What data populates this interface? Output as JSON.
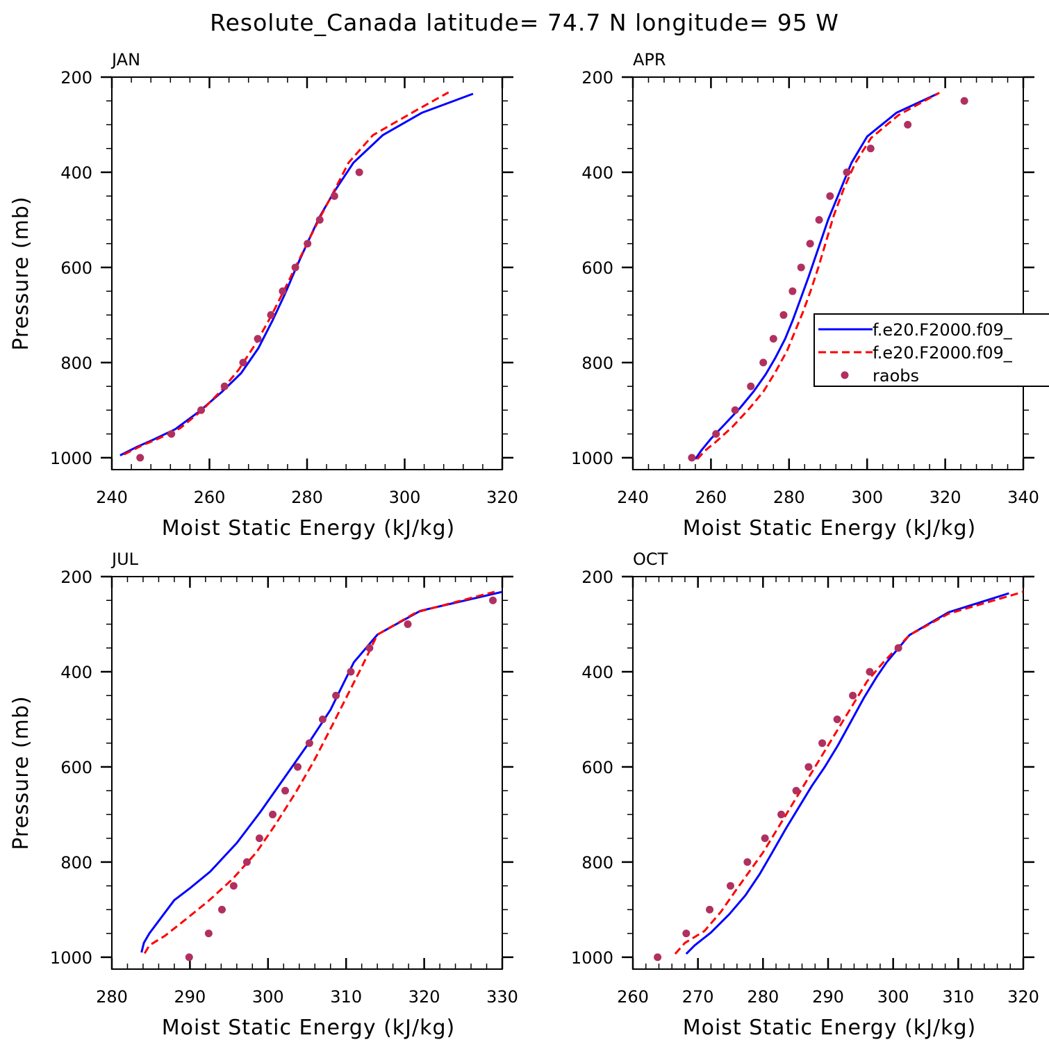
{
  "figure": {
    "title": "Resolute_Canada  latitude= 74.7 N longitude= 95 W"
  },
  "colors": {
    "model1": "#0000ff",
    "model2": "#ff0000",
    "raobs": "#b03060",
    "frame": "#000000"
  },
  "chart_data": [
    {
      "type": "line",
      "panel": "JAN",
      "title": "JAN",
      "xlabel": "Moist Static Energy (kJ/kg)",
      "ylabel": "Pressure (mb)",
      "xlim": [
        240,
        320
      ],
      "ylim": [
        1025,
        200
      ],
      "xticks": [
        240,
        260,
        280,
        300,
        320
      ],
      "yticks": [
        200,
        400,
        600,
        800,
        1000
      ],
      "grid": false,
      "series": [
        {
          "name": "f.e20.F2000.f09_",
          "style": "solid",
          "color": "#0000ff",
          "x": [
            241.7,
            245.0,
            248.5,
            253.0,
            258.0,
            262.5,
            266.5,
            270.0,
            273.0,
            275.5,
            277.8,
            280.0,
            282.5,
            285.5,
            289.5,
            295.5,
            303.5,
            314.0
          ],
          "y": [
            995,
            978,
            962,
            940,
            902,
            862,
            822,
            770,
            710,
            655,
            600,
            550,
            495,
            442,
            380,
            322,
            275,
            235
          ]
        },
        {
          "name": "f.e20.F2000.f09_",
          "style": "dashed",
          "color": "#ff0000",
          "x": [
            242.5,
            246.0,
            249.5,
            254.0,
            258.5,
            262.5,
            266.0,
            269.5,
            272.5,
            275.2,
            277.6,
            280.0,
            282.5,
            285.0,
            288.5,
            293.5,
            302.0,
            309.0
          ],
          "y": [
            993,
            975,
            960,
            938,
            900,
            858,
            815,
            760,
            705,
            650,
            600,
            550,
            498,
            450,
            380,
            322,
            272,
            232
          ]
        },
        {
          "name": "raobs",
          "style": "markers",
          "color": "#b03060",
          "x": [
            245.8,
            252.2,
            258.3,
            263.1,
            266.9,
            269.9,
            272.6,
            275.0,
            277.6,
            280.1,
            282.6,
            285.6,
            290.7
          ],
          "y": [
            1000,
            950,
            900,
            850,
            800,
            750,
            700,
            650,
            600,
            550,
            500,
            450,
            400
          ]
        }
      ]
    },
    {
      "type": "line",
      "panel": "APR",
      "title": "APR",
      "xlabel": "Moist Static Energy (kJ/kg)",
      "ylabel": "",
      "xlim": [
        240,
        340
      ],
      "ylim": [
        1025,
        200
      ],
      "xticks": [
        240,
        260,
        280,
        300,
        320,
        340
      ],
      "yticks": [
        200,
        400,
        600,
        800,
        1000
      ],
      "grid": false,
      "legend_position": "right",
      "series": [
        {
          "name": "f.e20.F2000.f09_",
          "style": "solid",
          "color": "#0000ff",
          "x": [
            256.0,
            257.5,
            260.0,
            263.5,
            267.5,
            271.0,
            274.0,
            276.5,
            279.0,
            281.0,
            283.0,
            285.0,
            287.5,
            290.0,
            293.0,
            296.0,
            300.0,
            307.5,
            318.0
          ],
          "y": [
            1003,
            985,
            960,
            930,
            895,
            860,
            825,
            790,
            750,
            710,
            665,
            620,
            560,
            500,
            440,
            380,
            325,
            275,
            235
          ]
        },
        {
          "name": "f.e20.F2000.f09_",
          "style": "dashed",
          "color": "#ff0000",
          "x": [
            256.5,
            258.5,
            261.5,
            265.5,
            270.0,
            273.5,
            276.5,
            279.5,
            281.5,
            283.5,
            285.5,
            287.5,
            289.5,
            291.5,
            294.0,
            297.0,
            301.0,
            308.0,
            318.5
          ],
          "y": [
            1003,
            985,
            965,
            935,
            895,
            860,
            820,
            775,
            735,
            695,
            650,
            600,
            545,
            490,
            435,
            380,
            328,
            280,
            233
          ]
        },
        {
          "name": "raobs",
          "style": "markers",
          "color": "#b03060",
          "x": [
            255.1,
            261.3,
            266.2,
            270.2,
            273.4,
            276.0,
            278.6,
            280.9,
            283.1,
            285.4,
            287.7,
            290.5,
            294.8,
            300.9,
            310.4,
            324.9
          ],
          "y": [
            1000,
            950,
            900,
            850,
            800,
            750,
            700,
            650,
            600,
            550,
            500,
            450,
            400,
            350,
            300,
            250
          ]
        }
      ]
    },
    {
      "type": "line",
      "panel": "JUL",
      "title": "JUL",
      "xlabel": "Moist Static Energy (kJ/kg)",
      "ylabel": "Pressure (mb)",
      "xlim": [
        280,
        330
      ],
      "ylim": [
        1025,
        200
      ],
      "xticks": [
        280,
        290,
        300,
        310,
        320,
        330
      ],
      "yticks": [
        200,
        400,
        600,
        800,
        1000
      ],
      "grid": false,
      "series": [
        {
          "name": "f.e20.F2000.f09_",
          "style": "solid",
          "color": "#0000ff",
          "x": [
            283.8,
            284.1,
            284.8,
            286.4,
            288.0,
            290.0,
            292.6,
            296.0,
            299.0,
            302.0,
            305.0,
            308.0,
            311.0,
            314.0,
            319.5,
            330.0
          ],
          "y": [
            990,
            970,
            950,
            915,
            880,
            855,
            820,
            760,
            695,
            625,
            555,
            480,
            380,
            322,
            272,
            232
          ]
        },
        {
          "name": "f.e20.F2000.f09_",
          "style": "dashed",
          "color": "#ff0000",
          "x": [
            284.2,
            284.8,
            286.8,
            289.5,
            292.5,
            295.5,
            298.5,
            301.0,
            303.5,
            305.8,
            308.0,
            310.0,
            312.0,
            314.0,
            319.0,
            329.0
          ],
          "y": [
            992,
            975,
            955,
            920,
            880,
            835,
            780,
            720,
            655,
            590,
            520,
            455,
            390,
            322,
            275,
            232
          ]
        },
        {
          "name": "raobs",
          "style": "markers",
          "color": "#b03060",
          "x": [
            289.9,
            292.4,
            294.1,
            295.6,
            297.3,
            298.9,
            300.6,
            302.2,
            303.8,
            305.3,
            307.0,
            308.7,
            310.6,
            313.0,
            317.9,
            328.8
          ],
          "y": [
            1000,
            950,
            900,
            850,
            800,
            750,
            700,
            650,
            600,
            550,
            500,
            450,
            400,
            350,
            300,
            250
          ]
        }
      ]
    },
    {
      "type": "line",
      "panel": "OCT",
      "title": "OCT",
      "xlabel": "Moist Static Energy (kJ/kg)",
      "ylabel": "",
      "xlim": [
        260,
        320
      ],
      "ylim": [
        1025,
        200
      ],
      "xticks": [
        260,
        270,
        280,
        290,
        300,
        310,
        320
      ],
      "yticks": [
        200,
        400,
        600,
        800,
        1000
      ],
      "grid": false,
      "series": [
        {
          "name": "f.e20.F2000.f09_",
          "style": "solid",
          "color": "#0000ff",
          "x": [
            268.2,
            269.5,
            272.0,
            274.8,
            277.3,
            279.5,
            281.5,
            283.5,
            285.5,
            287.5,
            289.5,
            291.5,
            293.5,
            295.5,
            297.5,
            299.0,
            302.5,
            308.5,
            317.8
          ],
          "y": [
            993,
            975,
            948,
            910,
            870,
            825,
            778,
            730,
            685,
            640,
            600,
            555,
            505,
            455,
            410,
            380,
            323,
            275,
            235
          ]
        },
        {
          "name": "f.e20.F2000.f09_",
          "style": "dashed",
          "color": "#ff0000",
          "x": [
            266.5,
            268.0,
            271.0,
            273.5,
            275.8,
            278.0,
            280.0,
            282.0,
            284.0,
            286.0,
            288.0,
            290.0,
            292.0,
            294.0,
            296.0,
            298.5,
            302.5,
            308.5,
            320.0
          ],
          "y": [
            993,
            970,
            945,
            905,
            860,
            818,
            780,
            735,
            690,
            645,
            600,
            555,
            510,
            465,
            420,
            380,
            323,
            278,
            232
          ]
        },
        {
          "name": "raobs",
          "style": "markers",
          "color": "#b03060",
          "x": [
            263.8,
            268.2,
            271.8,
            275.0,
            277.6,
            280.3,
            282.8,
            285.1,
            287.0,
            289.1,
            291.4,
            293.8,
            296.4,
            300.8
          ],
          "y": [
            1000,
            950,
            900,
            850,
            800,
            750,
            700,
            650,
            600,
            550,
            500,
            450,
            400,
            350
          ]
        }
      ]
    }
  ],
  "legend": {
    "entries": [
      {
        "label": "f.e20.F2000.f09_",
        "style": "solid",
        "color": "#0000ff"
      },
      {
        "label": "f.e20.F2000.f09_",
        "style": "dashed",
        "color": "#ff0000"
      },
      {
        "label": "raobs",
        "style": "markers",
        "color": "#b03060"
      }
    ]
  }
}
